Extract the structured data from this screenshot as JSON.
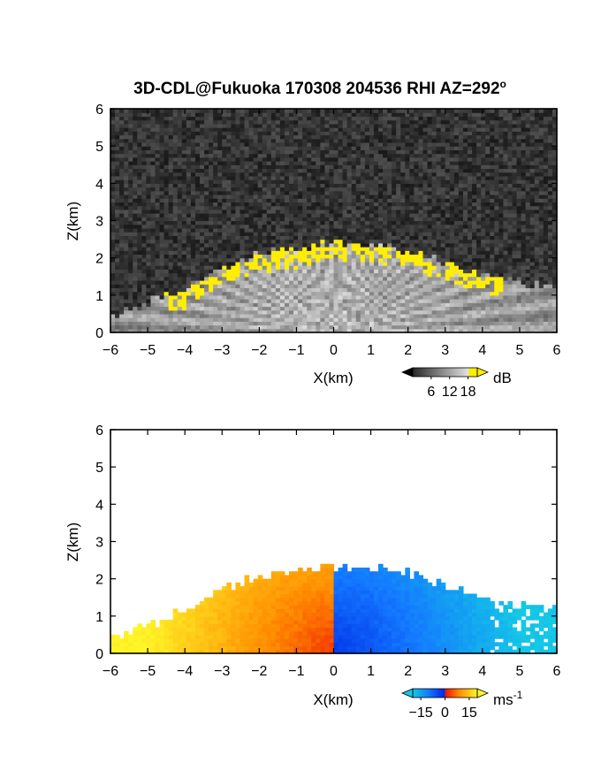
{
  "chart_data": [
    {
      "type": "heatmap",
      "title": "3D-CDL@Fukuoka 170308 204536 RHI AZ=292",
      "title_superscript": "o",
      "xlabel": "X(km)",
      "ylabel": "Z(km)",
      "xlim": [
        -6,
        6
      ],
      "ylim": [
        0,
        6
      ],
      "xticks": [
        "-6",
        "-5",
        "-4",
        "-3",
        "-2",
        "-1",
        "0",
        "1",
        "2",
        "3",
        "4",
        "5",
        "6"
      ],
      "yticks": [
        "0",
        "1",
        "2",
        "3",
        "4",
        "5",
        "6"
      ],
      "background": "noise (dark gray)",
      "colormap": "grayscale with yellow saturation",
      "colorbar": {
        "unit": "dB",
        "ticks": [
          "6",
          "12",
          "18"
        ],
        "range": [
          0,
          21
        ]
      },
      "echo_top_km": [
        0.45,
        0.8,
        1.2,
        1.5,
        1.75,
        1.95,
        2.1,
        2.3,
        2.4,
        2.35,
        2.2,
        2.05,
        1.9,
        1.75,
        1.55,
        1.35,
        1.25
      ],
      "echo_top_x_km": [
        -6,
        -5,
        -4,
        -3.5,
        -3,
        -2.5,
        -2,
        -1,
        0,
        1,
        2,
        2.5,
        3,
        3.5,
        4,
        5,
        6
      ],
      "colors": {
        "saturated": "#ffee00",
        "background_noise": "#2a2a2a"
      }
    },
    {
      "type": "heatmap",
      "title": "",
      "xlabel": "X(km)",
      "ylabel": "Z(km)",
      "xlim": [
        -6,
        6
      ],
      "ylim": [
        0,
        6
      ],
      "xticks": [
        "-6",
        "-5",
        "-4",
        "-3",
        "-2",
        "-1",
        "0",
        "1",
        "2",
        "3",
        "4",
        "5",
        "6"
      ],
      "yticks": [
        "0",
        "1",
        "2",
        "3",
        "4",
        "5",
        "6"
      ],
      "colormap": "blue-cyan-red-orange-yellow (Doppler velocity)",
      "colorbar": {
        "unit": "ms",
        "unit_superscript": "-1",
        "ticks": [
          "-15",
          "0",
          "15"
        ],
        "range": [
          -20,
          20
        ]
      },
      "velocity_sign": {
        "x_negative": "positive (red-yellow)",
        "x_positive": "negative (blue-cyan)"
      },
      "colors": {
        "near_negative": "#0033ff",
        "far_negative": "#22bbee",
        "near_positive": "#ee2200",
        "far_positive": "#ffee22"
      }
    }
  ]
}
